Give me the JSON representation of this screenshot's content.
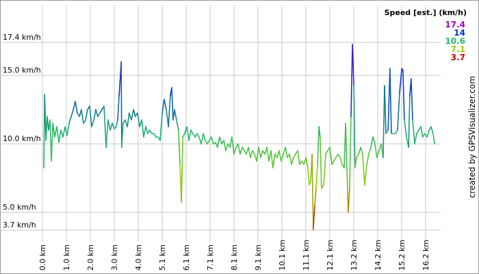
{
  "chart_data": {
    "type": "line",
    "legend_title": "Speed [est.] (km/h)",
    "colorscale": [
      {
        "value": 17.4,
        "color": "#a000c8"
      },
      {
        "value": 14.0,
        "color": "#0033cc"
      },
      {
        "value": 10.6,
        "color": "#22bb66"
      },
      {
        "value": 7.1,
        "color": "#99cc00"
      },
      {
        "value": 3.7,
        "color": "#cc0000"
      }
    ],
    "credit": "created by GPSVisualizer.com",
    "grid": true,
    "xlim": [
      0,
      16.88
    ],
    "ylim": [
      3.05,
      20.1
    ],
    "xticks": [
      {
        "value": 0,
        "label": "0.0 km"
      },
      {
        "value": 1.015,
        "label": "1.0 km"
      },
      {
        "value": 2.03,
        "label": "2.0 km"
      },
      {
        "value": 3.045,
        "label": "3.0 km"
      },
      {
        "value": 4.06,
        "label": "4.0 km"
      },
      {
        "value": 5.075,
        "label": "5.1 km"
      },
      {
        "value": 6.09,
        "label": "6.1 km"
      },
      {
        "value": 7.105,
        "label": "7.1 km"
      },
      {
        "value": 8.12,
        "label": "8.1 km"
      },
      {
        "value": 9.135,
        "label": "9.1 km"
      },
      {
        "value": 10.15,
        "label": "10.1 km"
      },
      {
        "value": 11.165,
        "label": "11.1 km"
      },
      {
        "value": 12.18,
        "label": "12.1 km"
      },
      {
        "value": 13.195,
        "label": "13.2 km"
      },
      {
        "value": 14.21,
        "label": "14.2 km"
      },
      {
        "value": 15.225,
        "label": "15.2 km"
      },
      {
        "value": 16.24,
        "label": "16.2 km"
      }
    ],
    "yticks": [
      {
        "value": 3.7,
        "label": "3.7 km/h"
      },
      {
        "value": 5.0,
        "label": "5.0 km/h"
      },
      {
        "value": 10.0,
        "label": "10.0 km/h"
      },
      {
        "value": 15.0,
        "label": "15.0 km/h"
      },
      {
        "value": 17.4,
        "label": "17.4 km/h"
      }
    ],
    "x": [
      0.06,
      0.09,
      0.15,
      0.2,
      0.26,
      0.32,
      0.38,
      0.44,
      0.52,
      0.61,
      0.7,
      0.78,
      0.87,
      0.96,
      1.04,
      1.13,
      1.22,
      1.31,
      1.39,
      1.48,
      1.57,
      1.65,
      1.74,
      1.83,
      1.91,
      2.0,
      2.09,
      2.18,
      2.26,
      2.35,
      2.44,
      2.52,
      2.61,
      2.7,
      2.78,
      2.87,
      2.96,
      3.05,
      3.13,
      3.19,
      3.25,
      3.31,
      3.34,
      3.36,
      3.42,
      3.51,
      3.6,
      3.68,
      3.77,
      3.86,
      3.94,
      4.03,
      4.12,
      4.21,
      4.29,
      4.38,
      4.47,
      4.55,
      4.64,
      4.73,
      4.81,
      4.9,
      4.99,
      5.08,
      5.16,
      5.25,
      5.34,
      5.42,
      5.48,
      5.54,
      5.6,
      5.68,
      5.77,
      5.83,
      5.89,
      5.95,
      6.03,
      6.12,
      6.21,
      6.29,
      6.38,
      6.47,
      6.55,
      6.64,
      6.73,
      6.82,
      6.9,
      6.99,
      7.08,
      7.16,
      7.25,
      7.34,
      7.42,
      7.51,
      7.6,
      7.69,
      7.77,
      7.86,
      7.95,
      8.03,
      8.12,
      8.21,
      8.29,
      8.38,
      8.47,
      8.56,
      8.64,
      8.73,
      8.82,
      8.9,
      8.99,
      9.08,
      9.16,
      9.25,
      9.34,
      9.43,
      9.51,
      9.6,
      9.69,
      9.77,
      9.86,
      9.95,
      10.03,
      10.12,
      10.21,
      10.3,
      10.38,
      10.47,
      10.56,
      10.64,
      10.73,
      10.82,
      10.9,
      10.99,
      11.08,
      11.17,
      11.25,
      11.31,
      11.37,
      11.43,
      11.48,
      11.54,
      11.6,
      11.66,
      11.72,
      11.77,
      11.83,
      11.92,
      12.01,
      12.09,
      12.18,
      12.27,
      12.35,
      12.44,
      12.53,
      12.62,
      12.7,
      12.79,
      12.85,
      12.91,
      12.96,
      13.02,
      13.08,
      13.14,
      13.2,
      13.25,
      13.31,
      13.4,
      13.49,
      13.57,
      13.66,
      13.75,
      13.83,
      13.92,
      14.01,
      14.09,
      14.18,
      14.27,
      14.36,
      14.44,
      14.5,
      14.56,
      14.65,
      14.73,
      14.79,
      14.88,
      14.96,
      15.05,
      15.14,
      15.23,
      15.28,
      15.34,
      15.43,
      15.52,
      15.57,
      15.63,
      15.69,
      15.78,
      15.86,
      15.95,
      16.04,
      16.12,
      16.21,
      16.3,
      16.39,
      16.47,
      16.56,
      16.62
    ],
    "values": [
      8.25,
      13.6,
      10.25,
      12,
      11,
      11.75,
      8.75,
      11.5,
      10.5,
      11.25,
      10.1,
      11,
      10.5,
      11.25,
      10.6,
      11.5,
      12,
      12.5,
      13.1,
      12.25,
      12,
      12.5,
      11.5,
      11.75,
      12.5,
      12.75,
      11.25,
      11.75,
      12.5,
      12,
      12.25,
      12.5,
      12.75,
      9.75,
      11.75,
      11,
      11.5,
      11.1,
      11.25,
      11.75,
      13.5,
      15.1,
      16,
      9.75,
      11.5,
      11.75,
      11.25,
      12.25,
      11.75,
      12.5,
      12,
      12.25,
      11.25,
      11.75,
      10.5,
      11.25,
      10.75,
      11,
      10.75,
      10.75,
      10.5,
      10.5,
      10.25,
      12.25,
      13.25,
      12.5,
      11.25,
      13.5,
      14.1,
      11.75,
      12.5,
      11.75,
      11,
      8.5,
      5.75,
      10.5,
      10.75,
      11.25,
      10.25,
      11,
      10.75,
      10.5,
      10.75,
      10.5,
      10,
      10.75,
      10.25,
      10,
      10.25,
      10.5,
      10,
      10.1,
      9.75,
      10.5,
      10,
      10.25,
      9.5,
      10,
      9.75,
      10.5,
      9.25,
      9.75,
      10,
      9.25,
      9.75,
      9.5,
      9.25,
      9.75,
      9,
      9.5,
      9.25,
      8.75,
      9.75,
      9,
      9.5,
      9.25,
      9.75,
      8.75,
      9.5,
      8.25,
      9.25,
      9,
      9.5,
      8.75,
      9.25,
      9.75,
      9,
      9.25,
      8.5,
      9,
      9.25,
      9.5,
      8.5,
      8.75,
      8.5,
      9,
      8.25,
      7,
      7.25,
      9.25,
      3.75,
      5.5,
      6.75,
      8.5,
      11.25,
      10.5,
      6.75,
      7,
      9.25,
      9.5,
      9.75,
      8.5,
      8.75,
      9,
      9.25,
      9,
      8.5,
      8.25,
      11.5,
      8,
      5,
      6.75,
      12,
      17.25,
      14.25,
      8.25,
      9,
      9.25,
      9.75,
      9.25,
      7,
      8.5,
      9.25,
      9.75,
      10.5,
      10,
      9,
      9.5,
      10,
      9,
      14.25,
      10.75,
      11,
      15.5,
      10.75,
      10.75,
      10.75,
      11,
      13.75,
      15.5,
      15.4,
      11.75,
      10.5,
      9.75,
      13.5,
      14.75,
      11.75,
      10,
      10.75,
      11,
      11.25,
      10.5,
      10.75,
      10.5,
      11,
      11.25,
      10.75,
      10
    ]
  }
}
